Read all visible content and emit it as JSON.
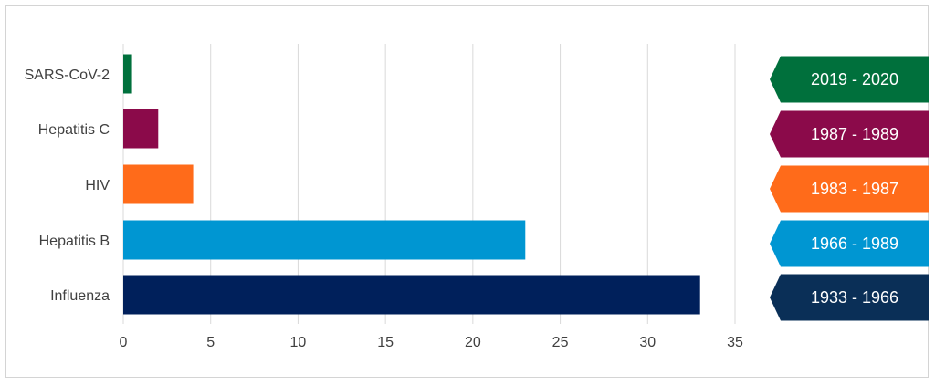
{
  "chart_data": {
    "type": "bar",
    "orientation": "horizontal",
    "categories": [
      "SARS-CoV-2",
      "Hepatitis C",
      "HIV",
      "Hepatitis B",
      "Influenza"
    ],
    "values": [
      0.5,
      2,
      4,
      23,
      33
    ],
    "colors": [
      "#00703c",
      "#8b0a4a",
      "#ff6b1a",
      "#0096d2",
      "#00205b"
    ],
    "xlim": [
      0,
      35
    ],
    "xticks": [
      0,
      5,
      10,
      15,
      20,
      25,
      30,
      35
    ],
    "grid": "vertical",
    "title": "",
    "xlabel": "",
    "ylabel": "",
    "period_labels": [
      {
        "label": "2019 - 2020",
        "color": "#00703c"
      },
      {
        "label": "1987 - 1989",
        "color": "#8b0a4a"
      },
      {
        "label": "1983 - 1987",
        "color": "#ff6b1a"
      },
      {
        "label": "1966 - 1989",
        "color": "#0096d2"
      },
      {
        "label": "1933 - 1966",
        "color": "#0a2f57"
      }
    ]
  }
}
